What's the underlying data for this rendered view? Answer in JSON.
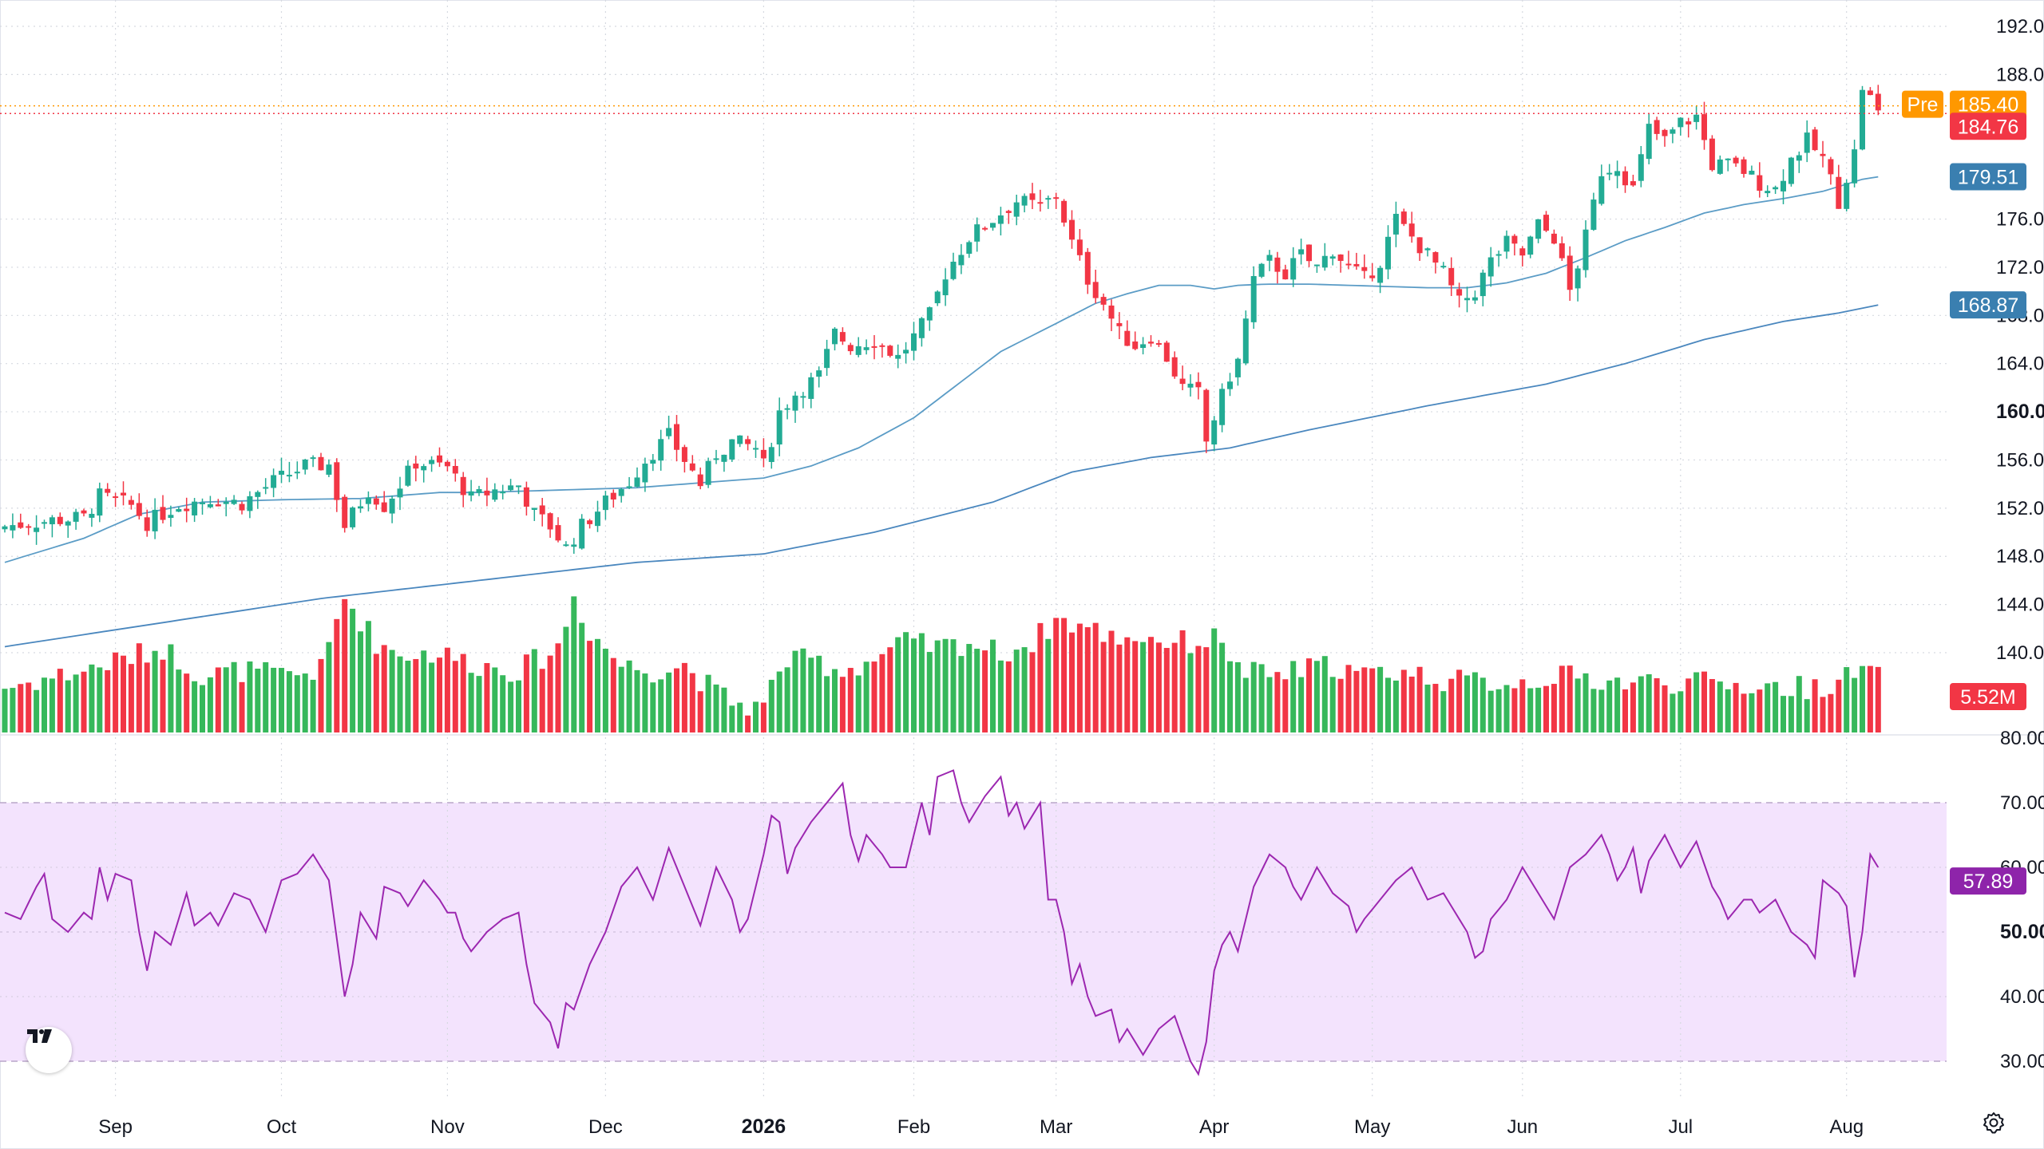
{
  "chart_data": {
    "type": "candlestick",
    "price_axis": {
      "ticks": [
        "192.00",
        "188.00",
        "176.00",
        "172.00",
        "168.00",
        "164.00",
        "160.00",
        "156.00",
        "152.00",
        "148.00",
        "144.00",
        "140.00"
      ],
      "tick_values": [
        192,
        188,
        176,
        172,
        168,
        164,
        160,
        156,
        152,
        148,
        144,
        140
      ],
      "bold_tick": "160.00",
      "range": [
        138.5,
        194
      ]
    },
    "x_axis": {
      "labels": [
        "Sep",
        "Oct",
        "Nov",
        "Dec",
        "2026",
        "Feb",
        "Mar",
        "Apr",
        "May",
        "Jun",
        "Jul",
        "Aug"
      ],
      "bold_label": "2026"
    },
    "badges": {
      "pre_label": "Pre",
      "pre_price": "185.40",
      "last_price": "184.76",
      "ma_fast": "179.51",
      "ma_slow": "168.87",
      "volume": "5.52M"
    },
    "rsi_axis": {
      "ticks": [
        "80.00",
        "70.00",
        "60.00",
        "50.00",
        "40.00",
        "30.00"
      ],
      "tick_values": [
        80,
        70,
        60,
        50,
        40,
        30
      ],
      "value_label": "57.89",
      "band": [
        30,
        70
      ]
    },
    "colors": {
      "up": "#22ab94",
      "up_volume": "#36b85b",
      "down": "#f23645",
      "ma_fast": "#5b9cc6",
      "ma_slow": "#4a87be",
      "rsi_line": "#9c27b0",
      "rsi_band": "#f3e3fd",
      "pre_badge": "#ff9800",
      "last_badge": "#f23645",
      "ma_badge": "#3a7fb0",
      "rsi_badge": "#8e24aa",
      "grid": "#d6d9e0"
    },
    "month_anchors": [
      {
        "label": "Sep",
        "index": 14
      },
      {
        "label": "Oct",
        "index": 35
      },
      {
        "label": "Nov",
        "index": 56
      },
      {
        "label": "Dec",
        "index": 76
      },
      {
        "label": "2026",
        "index": 96
      },
      {
        "label": "Feb",
        "index": 115
      },
      {
        "label": "Mar",
        "index": 133
      },
      {
        "label": "Apr",
        "index": 153
      },
      {
        "label": "May",
        "index": 173
      },
      {
        "label": "Jun",
        "index": 192
      },
      {
        "label": "Jul",
        "index": 212
      },
      {
        "label": "Aug",
        "index": 233
      }
    ],
    "close_anchors": [
      [
        0,
        150.5
      ],
      [
        6,
        151
      ],
      [
        10,
        151.2
      ],
      [
        12,
        153
      ],
      [
        16,
        152.2
      ],
      [
        18,
        150.8
      ],
      [
        22,
        152.3
      ],
      [
        26,
        152.8
      ],
      [
        30,
        152.4
      ],
      [
        34,
        154.2
      ],
      [
        38,
        155.5
      ],
      [
        41,
        155.6
      ],
      [
        43,
        150.5
      ],
      [
        46,
        153.5
      ],
      [
        48,
        152.2
      ],
      [
        52,
        155.8
      ],
      [
        56,
        155.4
      ],
      [
        59,
        152.8
      ],
      [
        62,
        153.5
      ],
      [
        65,
        153.9
      ],
      [
        67,
        151.5
      ],
      [
        69,
        150.5
      ],
      [
        71,
        148.7
      ],
      [
        73,
        150.5
      ],
      [
        76,
        152.5
      ],
      [
        79,
        154.2
      ],
      [
        81,
        156
      ],
      [
        84,
        158
      ],
      [
        86,
        156
      ],
      [
        88,
        154
      ],
      [
        90,
        156.5
      ],
      [
        92,
        157.5
      ],
      [
        95,
        157
      ],
      [
        96,
        155.5
      ],
      [
        98,
        160
      ],
      [
        100,
        161.5
      ],
      [
        103,
        163
      ],
      [
        105,
        166.5
      ],
      [
        107,
        165.5
      ],
      [
        110,
        166
      ],
      [
        113,
        164.5
      ],
      [
        115,
        166.2
      ],
      [
        117,
        168
      ],
      [
        119,
        171.5
      ],
      [
        122,
        174.5
      ],
      [
        125,
        176
      ],
      [
        128,
        177.5
      ],
      [
        131,
        177
      ],
      [
        133,
        178
      ],
      [
        135,
        174
      ],
      [
        137,
        171
      ],
      [
        139,
        169
      ],
      [
        141,
        166.5
      ],
      [
        143,
        165.5
      ],
      [
        145,
        166.3
      ],
      [
        147,
        164.5
      ],
      [
        149,
        162
      ],
      [
        151,
        161.5
      ],
      [
        152,
        157.5
      ],
      [
        153,
        159.5
      ],
      [
        155,
        163
      ],
      [
        156,
        164.2
      ],
      [
        158,
        171
      ],
      [
        160,
        172.5
      ],
      [
        162,
        171.5
      ],
      [
        164,
        173
      ],
      [
        166,
        172
      ],
      [
        168,
        173.5
      ],
      [
        170,
        172
      ],
      [
        172,
        171
      ],
      [
        174,
        172.5
      ],
      [
        176,
        176
      ],
      [
        178,
        174.5
      ],
      [
        180,
        173
      ],
      [
        182,
        171.5
      ],
      [
        184,
        169
      ],
      [
        186,
        170
      ],
      [
        188,
        172.5
      ],
      [
        190,
        174
      ],
      [
        192,
        173
      ],
      [
        194,
        175.5
      ],
      [
        196,
        174.5
      ],
      [
        198,
        170
      ],
      [
        200,
        174.5
      ],
      [
        202,
        180
      ],
      [
        204,
        180.5
      ],
      [
        206,
        178.5
      ],
      [
        208,
        183.5
      ],
      [
        210,
        182.5
      ],
      [
        212,
        184
      ],
      [
        214,
        184.5
      ],
      [
        216,
        180.5
      ],
      [
        218,
        180.5
      ],
      [
        220,
        180
      ],
      [
        222,
        179
      ],
      [
        224,
        178.5
      ],
      [
        226,
        181
      ],
      [
        228,
        182.5
      ],
      [
        230,
        181
      ],
      [
        232,
        177.5
      ],
      [
        234,
        181.5
      ],
      [
        235,
        187
      ],
      [
        236,
        186
      ],
      [
        237,
        184.76
      ]
    ],
    "volume_anchors": [
      [
        0,
        4
      ],
      [
        10,
        5.5
      ],
      [
        15,
        6.5
      ],
      [
        20,
        7.5
      ],
      [
        25,
        5
      ],
      [
        30,
        5.5
      ],
      [
        35,
        5
      ],
      [
        40,
        5.5
      ],
      [
        43,
        12
      ],
      [
        47,
        8
      ],
      [
        50,
        7
      ],
      [
        55,
        7
      ],
      [
        60,
        6
      ],
      [
        65,
        5.5
      ],
      [
        70,
        7.5
      ],
      [
        72,
        12
      ],
      [
        74,
        9
      ],
      [
        78,
        6
      ],
      [
        82,
        5.5
      ],
      [
        86,
        6
      ],
      [
        90,
        3.5
      ],
      [
        93,
        2.5
      ],
      [
        96,
        2.2
      ],
      [
        98,
        6
      ],
      [
        102,
        6.5
      ],
      [
        106,
        5.5
      ],
      [
        110,
        6.5
      ],
      [
        114,
        8
      ],
      [
        118,
        7.5
      ],
      [
        122,
        8
      ],
      [
        126,
        7
      ],
      [
        130,
        8
      ],
      [
        133,
        10
      ],
      [
        136,
        9.5
      ],
      [
        140,
        8.5
      ],
      [
        144,
        8.5
      ],
      [
        148,
        8
      ],
      [
        151,
        8
      ],
      [
        154,
        8.5
      ],
      [
        156,
        5.5
      ],
      [
        160,
        5
      ],
      [
        164,
        5.5
      ],
      [
        168,
        6
      ],
      [
        172,
        5
      ],
      [
        176,
        5.5
      ],
      [
        180,
        5
      ],
      [
        184,
        4.5
      ],
      [
        188,
        4.5
      ],
      [
        192,
        4.5
      ],
      [
        196,
        5
      ],
      [
        200,
        4.8
      ],
      [
        204,
        4.5
      ],
      [
        208,
        4.5
      ],
      [
        212,
        4.5
      ],
      [
        216,
        4.3
      ],
      [
        220,
        4.2
      ],
      [
        224,
        4
      ],
      [
        228,
        4
      ],
      [
        232,
        4.5
      ],
      [
        235,
        5.52
      ],
      [
        237,
        4.8
      ]
    ],
    "volume_max": 14,
    "ma_fast_anchors": [
      [
        0,
        147.5
      ],
      [
        10,
        149.5
      ],
      [
        17,
        151.5
      ],
      [
        25,
        152.5
      ],
      [
        35,
        152.7
      ],
      [
        45,
        152.8
      ],
      [
        55,
        153.3
      ],
      [
        60,
        153.3
      ],
      [
        70,
        153.5
      ],
      [
        80,
        153.7
      ],
      [
        90,
        154.2
      ],
      [
        96,
        154.5
      ],
      [
        102,
        155.5
      ],
      [
        108,
        157
      ],
      [
        115,
        159.5
      ],
      [
        120,
        162
      ],
      [
        126,
        165
      ],
      [
        132,
        167
      ],
      [
        138,
        169
      ],
      [
        142,
        169.8
      ],
      [
        146,
        170.5
      ],
      [
        150,
        170.5
      ],
      [
        153,
        170.2
      ],
      [
        156,
        170.5
      ],
      [
        160,
        170.6
      ],
      [
        165,
        170.6
      ],
      [
        170,
        170.5
      ],
      [
        175,
        170.4
      ],
      [
        180,
        170.3
      ],
      [
        185,
        170.3
      ],
      [
        190,
        170.7
      ],
      [
        195,
        171.5
      ],
      [
        200,
        172.8
      ],
      [
        205,
        174.2
      ],
      [
        210,
        175.3
      ],
      [
        215,
        176.5
      ],
      [
        220,
        177.2
      ],
      [
        225,
        177.7
      ],
      [
        230,
        178.3
      ],
      [
        235,
        179.3
      ],
      [
        237,
        179.51
      ]
    ],
    "ma_slow_anchors": [
      [
        0,
        140.5
      ],
      [
        20,
        142.5
      ],
      [
        40,
        144.5
      ],
      [
        60,
        146
      ],
      [
        80,
        147.5
      ],
      [
        96,
        148.2
      ],
      [
        110,
        150
      ],
      [
        125,
        152.5
      ],
      [
        135,
        155
      ],
      [
        145,
        156.2
      ],
      [
        155,
        157
      ],
      [
        165,
        158.5
      ],
      [
        180,
        160.5
      ],
      [
        195,
        162.3
      ],
      [
        205,
        164
      ],
      [
        215,
        166
      ],
      [
        225,
        167.5
      ],
      [
        232,
        168.2
      ],
      [
        237,
        168.87
      ]
    ],
    "rsi_anchors": [
      [
        0,
        53
      ],
      [
        2,
        52
      ],
      [
        4,
        57
      ],
      [
        5,
        59
      ],
      [
        6,
        52
      ],
      [
        8,
        50
      ],
      [
        10,
        53
      ],
      [
        11,
        52
      ],
      [
        12,
        60
      ],
      [
        13,
        55
      ],
      [
        14,
        59
      ],
      [
        16,
        58
      ],
      [
        17,
        50
      ],
      [
        18,
        44
      ],
      [
        19,
        50
      ],
      [
        21,
        48
      ],
      [
        23,
        56
      ],
      [
        24,
        51
      ],
      [
        26,
        53
      ],
      [
        27,
        51
      ],
      [
        29,
        56
      ],
      [
        31,
        55
      ],
      [
        33,
        50
      ],
      [
        35,
        58
      ],
      [
        37,
        59
      ],
      [
        39,
        62
      ],
      [
        40,
        60
      ],
      [
        41,
        58
      ],
      [
        43,
        40
      ],
      [
        44,
        45
      ],
      [
        45,
        53
      ],
      [
        47,
        49
      ],
      [
        48,
        57
      ],
      [
        50,
        56
      ],
      [
        51,
        54
      ],
      [
        53,
        58
      ],
      [
        55,
        55
      ],
      [
        56,
        53
      ],
      [
        57,
        53
      ],
      [
        58,
        49
      ],
      [
        59,
        47
      ],
      [
        61,
        50
      ],
      [
        63,
        52
      ],
      [
        65,
        53
      ],
      [
        66,
        45
      ],
      [
        67,
        39
      ],
      [
        69,
        36
      ],
      [
        70,
        32
      ],
      [
        71,
        39
      ],
      [
        72,
        38
      ],
      [
        74,
        45
      ],
      [
        76,
        50
      ],
      [
        78,
        57
      ],
      [
        80,
        60
      ],
      [
        82,
        55
      ],
      [
        84,
        63
      ],
      [
        86,
        57
      ],
      [
        88,
        51
      ],
      [
        90,
        60
      ],
      [
        92,
        55
      ],
      [
        93,
        50
      ],
      [
        94,
        52
      ],
      [
        96,
        62
      ],
      [
        97,
        68
      ],
      [
        98,
        67
      ],
      [
        99,
        59
      ],
      [
        100,
        63
      ],
      [
        102,
        67
      ],
      [
        104,
        70
      ],
      [
        106,
        73
      ],
      [
        107,
        65
      ],
      [
        108,
        61
      ],
      [
        109,
        65
      ],
      [
        111,
        62
      ],
      [
        112,
        60
      ],
      [
        114,
        60
      ],
      [
        115,
        65
      ],
      [
        116,
        70
      ],
      [
        117,
        65
      ],
      [
        118,
        74
      ],
      [
        120,
        75
      ],
      [
        121,
        70
      ],
      [
        122,
        67
      ],
      [
        124,
        71
      ],
      [
        126,
        74
      ],
      [
        127,
        68
      ],
      [
        128,
        70
      ],
      [
        129,
        66
      ],
      [
        131,
        70
      ],
      [
        132,
        55
      ],
      [
        133,
        55
      ],
      [
        134,
        50
      ],
      [
        135,
        42
      ],
      [
        136,
        45
      ],
      [
        137,
        40
      ],
      [
        138,
        37
      ],
      [
        140,
        38
      ],
      [
        141,
        33
      ],
      [
        142,
        35
      ],
      [
        144,
        31
      ],
      [
        146,
        35
      ],
      [
        148,
        37
      ],
      [
        150,
        30
      ],
      [
        151,
        28
      ],
      [
        152,
        33
      ],
      [
        153,
        44
      ],
      [
        154,
        48
      ],
      [
        155,
        50
      ],
      [
        156,
        47
      ],
      [
        157,
        52
      ],
      [
        158,
        57
      ],
      [
        160,
        62
      ],
      [
        162,
        60
      ],
      [
        163,
        57
      ],
      [
        164,
        55
      ],
      [
        166,
        60
      ],
      [
        168,
        56
      ],
      [
        170,
        54
      ],
      [
        171,
        50
      ],
      [
        172,
        52
      ],
      [
        174,
        55
      ],
      [
        176,
        58
      ],
      [
        178,
        60
      ],
      [
        180,
        55
      ],
      [
        182,
        56
      ],
      [
        183,
        54
      ],
      [
        185,
        50
      ],
      [
        186,
        46
      ],
      [
        187,
        47
      ],
      [
        188,
        52
      ],
      [
        190,
        55
      ],
      [
        192,
        60
      ],
      [
        194,
        56
      ],
      [
        196,
        52
      ],
      [
        198,
        60
      ],
      [
        200,
        62
      ],
      [
        202,
        65
      ],
      [
        203,
        62
      ],
      [
        204,
        58
      ],
      [
        205,
        60
      ],
      [
        206,
        63
      ],
      [
        207,
        56
      ],
      [
        208,
        61
      ],
      [
        210,
        65
      ],
      [
        212,
        60
      ],
      [
        214,
        64
      ],
      [
        216,
        57
      ],
      [
        217,
        55
      ],
      [
        218,
        52
      ],
      [
        220,
        55
      ],
      [
        221,
        55
      ],
      [
        222,
        53
      ],
      [
        224,
        55
      ],
      [
        226,
        50
      ],
      [
        228,
        48
      ],
      [
        229,
        46
      ],
      [
        230,
        58
      ],
      [
        232,
        56
      ],
      [
        233,
        54
      ],
      [
        234,
        43
      ],
      [
        235,
        50
      ],
      [
        236,
        62
      ],
      [
        237,
        60
      ],
      [
        238,
        57.89
      ]
    ]
  }
}
